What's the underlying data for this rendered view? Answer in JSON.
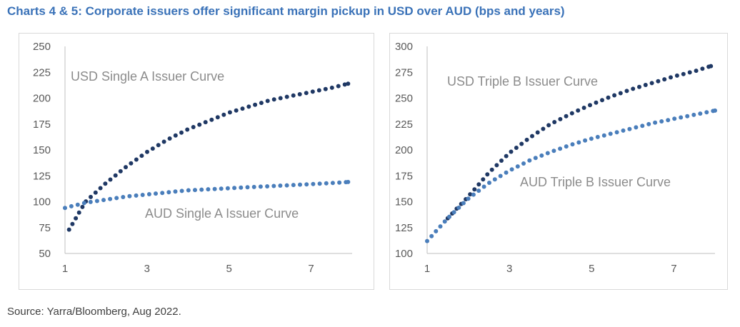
{
  "title": "Charts 4 & 5: Corporate issuers offer significant margin pickup in USD over AUD (bps and years)",
  "source": "Source: Yarra/Bloomberg, Aug 2022.",
  "colors": {
    "usd": "#1f3864",
    "aud": "#4a7ebb",
    "title": "#3a72b8",
    "axis": "#bfbfbf"
  },
  "chart_data": [
    {
      "type": "scatter",
      "xlim": [
        1,
        8
      ],
      "ylim": [
        50,
        250
      ],
      "x_ticks": [
        1,
        3,
        5,
        7
      ],
      "y_ticks": [
        50,
        75,
        100,
        125,
        150,
        175,
        200,
        225,
        250
      ],
      "grid": false,
      "legend": "none",
      "annotations": [
        "USD Single A Issuer Curve",
        "AUD Single A Issuer Curve"
      ],
      "series": [
        {
          "name": "USD Single A Issuer Curve",
          "x": [
            1.1,
            1.5,
            2.0,
            2.5,
            3.0,
            3.5,
            4.0,
            4.5,
            5.0,
            5.5,
            6.0,
            6.5,
            7.0,
            7.5,
            7.9
          ],
          "y": [
            73,
            100,
            118,
            134,
            148,
            160,
            170,
            178,
            186,
            192,
            198,
            202,
            206,
            210,
            214
          ]
        },
        {
          "name": "AUD Single A Issuer Curve",
          "x": [
            1.0,
            1.5,
            2.0,
            2.5,
            3.0,
            3.5,
            4.0,
            4.5,
            5.0,
            5.5,
            6.0,
            6.5,
            7.0,
            7.5,
            7.9
          ],
          "y": [
            94,
            99,
            102,
            105,
            107,
            109,
            111,
            112,
            113,
            114,
            115,
            116,
            117,
            118,
            119
          ]
        }
      ]
    },
    {
      "type": "scatter",
      "xlim": [
        1,
        8
      ],
      "ylim": [
        100,
        300
      ],
      "x_ticks": [
        1,
        3,
        5,
        7
      ],
      "y_ticks": [
        100,
        125,
        150,
        175,
        200,
        225,
        250,
        275,
        300
      ],
      "grid": false,
      "legend": "none",
      "annotations": [
        "USD Triple B Issuer Curve",
        "AUD Triple B Issuer Curve"
      ],
      "series": [
        {
          "name": "USD Triple B Issuer Curve",
          "x": [
            1.5,
            2.0,
            2.5,
            3.0,
            3.5,
            4.0,
            4.5,
            5.0,
            5.5,
            6.0,
            6.5,
            7.0,
            7.5,
            7.9
          ],
          "y": [
            134,
            155,
            178,
            197,
            212,
            225,
            235,
            244,
            252,
            259,
            265,
            271,
            276,
            281
          ]
        },
        {
          "name": "AUD Triple B Issuer Curve",
          "x": [
            1.0,
            1.5,
            2.0,
            2.5,
            3.0,
            3.5,
            4.0,
            4.5,
            5.0,
            5.5,
            6.0,
            6.5,
            7.0,
            7.5,
            8.0
          ],
          "y": [
            112,
            134,
            153,
            168,
            180,
            190,
            198,
            205,
            211,
            216,
            221,
            226,
            230,
            234,
            238
          ]
        }
      ]
    }
  ]
}
